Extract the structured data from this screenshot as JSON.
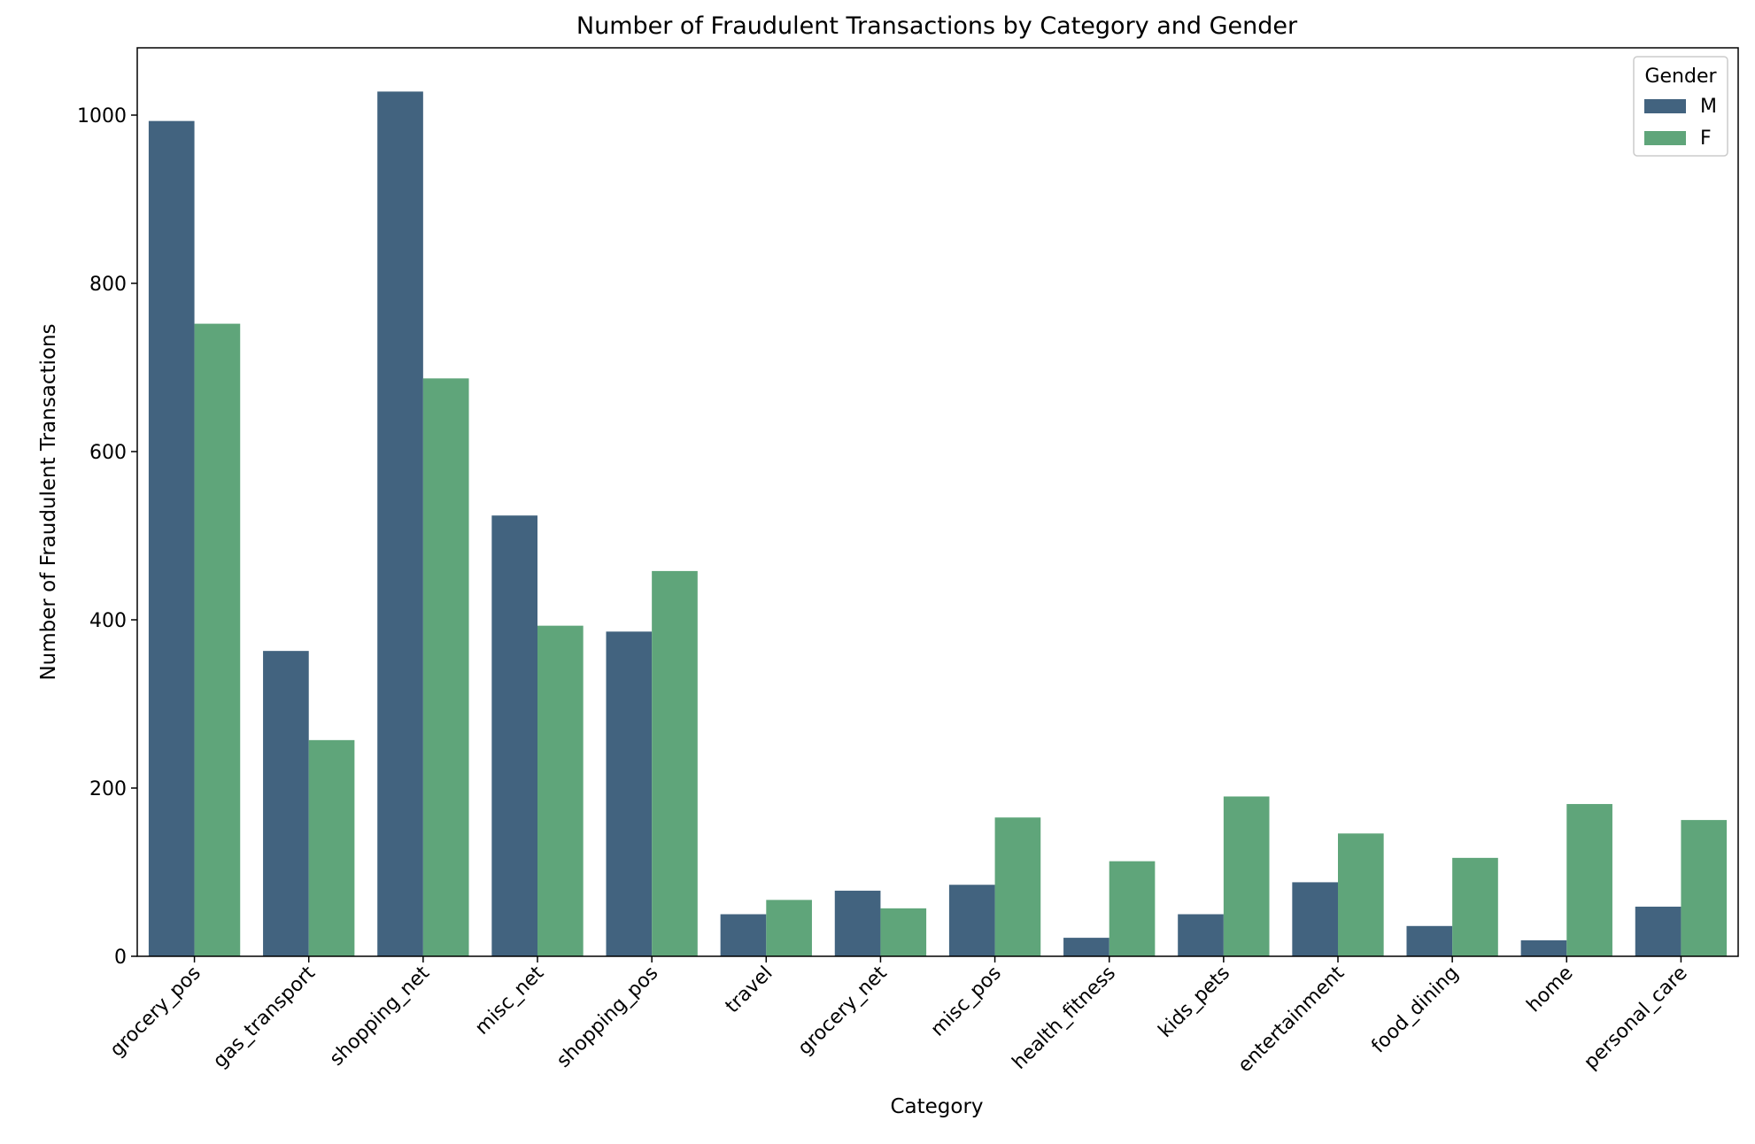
{
  "chart_data": {
    "type": "bar",
    "title": "Number of Fraudulent Transactions by Category and Gender",
    "xlabel": "Category",
    "ylabel": "Number of Fraudulent Transactions",
    "categories": [
      "grocery_pos",
      "gas_transport",
      "shopping_net",
      "misc_net",
      "shopping_pos",
      "travel",
      "grocery_net",
      "misc_pos",
      "health_fitness",
      "kids_pets",
      "entertainment",
      "food_dining",
      "home",
      "personal_care"
    ],
    "series": [
      {
        "name": "M",
        "color": "#42637f",
        "values": [
          993,
          363,
          1028,
          524,
          386,
          50,
          78,
          85,
          22,
          50,
          88,
          36,
          19,
          59
        ]
      },
      {
        "name": "F",
        "color": "#5fa57a",
        "values": [
          752,
          257,
          687,
          393,
          458,
          67,
          57,
          165,
          113,
          190,
          146,
          117,
          181,
          162
        ]
      }
    ],
    "ylim": [
      0,
      1080
    ],
    "yticks": [
      0,
      200,
      400,
      600,
      800,
      1000
    ],
    "grid": false,
    "legend": {
      "title": "Gender",
      "position": "top-right"
    }
  }
}
